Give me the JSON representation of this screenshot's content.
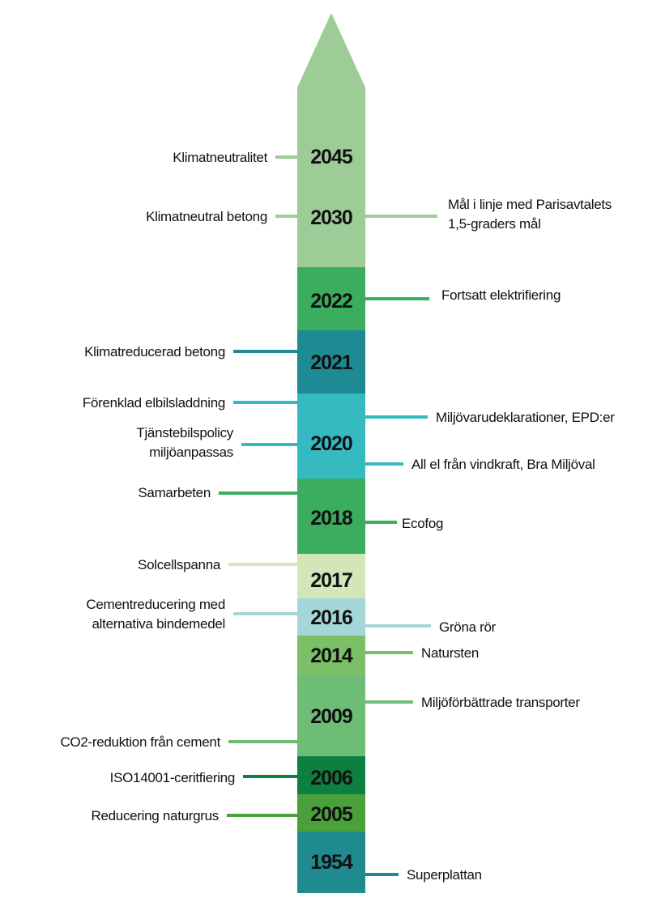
{
  "timeline": {
    "colors": {
      "light_green": "#9dcc97",
      "green": "#3aae5e",
      "dark_teal": "#1d8a94",
      "cyan": "#35bac2",
      "pale_green": "#d2e6ba",
      "pale_cyan": "#a6d7d8",
      "mid_green": "#7bc067",
      "sea_green": "#6ebd77",
      "dark_green": "#0c8040",
      "grass_green": "#4aa13c",
      "deep_teal": "#1f8b91"
    },
    "segments": [
      {
        "color": "light_green",
        "years": [
          "2045",
          "2030"
        ]
      },
      {
        "color": "green",
        "years": [
          "2022"
        ]
      },
      {
        "color": "dark_teal",
        "years": [
          "2021"
        ]
      },
      {
        "color": "cyan",
        "years": [
          "2020"
        ]
      },
      {
        "color": "green",
        "years": [
          "2018"
        ]
      },
      {
        "color": "pale_green",
        "years": [
          "2017"
        ]
      },
      {
        "color": "pale_cyan",
        "years": [
          "2016"
        ]
      },
      {
        "color": "mid_green",
        "years": [
          "2014"
        ]
      },
      {
        "color": "sea_green",
        "years": [
          "2009"
        ]
      },
      {
        "color": "dark_green",
        "years": [
          "2006"
        ]
      },
      {
        "color": "grass_green",
        "years": [
          "2005"
        ]
      },
      {
        "color": "deep_teal",
        "years": [
          "1954"
        ]
      }
    ],
    "events": [
      {
        "side": "left",
        "color": "light_green",
        "lines": [
          "Klimatneutralitet"
        ]
      },
      {
        "side": "left",
        "color": "light_green",
        "lines": [
          "Klimatneutral betong"
        ]
      },
      {
        "side": "right",
        "color": "light_green",
        "lines": [
          "Mål i linje med Parisavtalets",
          "1,5-graders mål"
        ]
      },
      {
        "side": "right",
        "color": "green",
        "lines": [
          "Fortsatt elektrifiering"
        ]
      },
      {
        "side": "left",
        "color": "dark_teal",
        "lines": [
          "Klimatreducerad betong"
        ]
      },
      {
        "side": "left",
        "color": "cyan",
        "lines": [
          "Förenklad elbilsladdning"
        ]
      },
      {
        "side": "left",
        "color": "cyan",
        "lines": [
          "Tjänstebilspolicy",
          "miljöanpassas"
        ]
      },
      {
        "side": "right",
        "color": "cyan",
        "lines": [
          "Miljövarudeklarationer, EPD:er"
        ]
      },
      {
        "side": "right",
        "color": "cyan",
        "lines": [
          "All el från vindkraft, Bra Miljöval"
        ]
      },
      {
        "side": "left",
        "color": "green",
        "lines": [
          "Samarbeten"
        ]
      },
      {
        "side": "right",
        "color": "green",
        "lines": [
          "Ecofog"
        ]
      },
      {
        "side": "left",
        "color": "pale_green",
        "lines": [
          "Solcellspanna"
        ]
      },
      {
        "side": "left",
        "color": "pale_cyan",
        "lines": [
          "Cementreducering med",
          "alternativa bindemedel"
        ]
      },
      {
        "side": "right",
        "color": "pale_cyan",
        "lines": [
          "Gröna rör"
        ]
      },
      {
        "side": "right",
        "color": "mid_green",
        "lines": [
          "Natursten"
        ]
      },
      {
        "side": "right",
        "color": "sea_green",
        "lines": [
          "Miljöförbättrade transporter"
        ]
      },
      {
        "side": "left",
        "color": "sea_green",
        "lines": [
          "CO2-reduktion från cement"
        ]
      },
      {
        "side": "left",
        "color": "dark_green",
        "lines": [
          "ISO14001-ceritfiering"
        ]
      },
      {
        "side": "left",
        "color": "grass_green",
        "lines": [
          "Reducering naturgrus"
        ]
      },
      {
        "side": "right",
        "color": "deep_teal",
        "lines": [
          "Superplattan"
        ]
      }
    ]
  }
}
